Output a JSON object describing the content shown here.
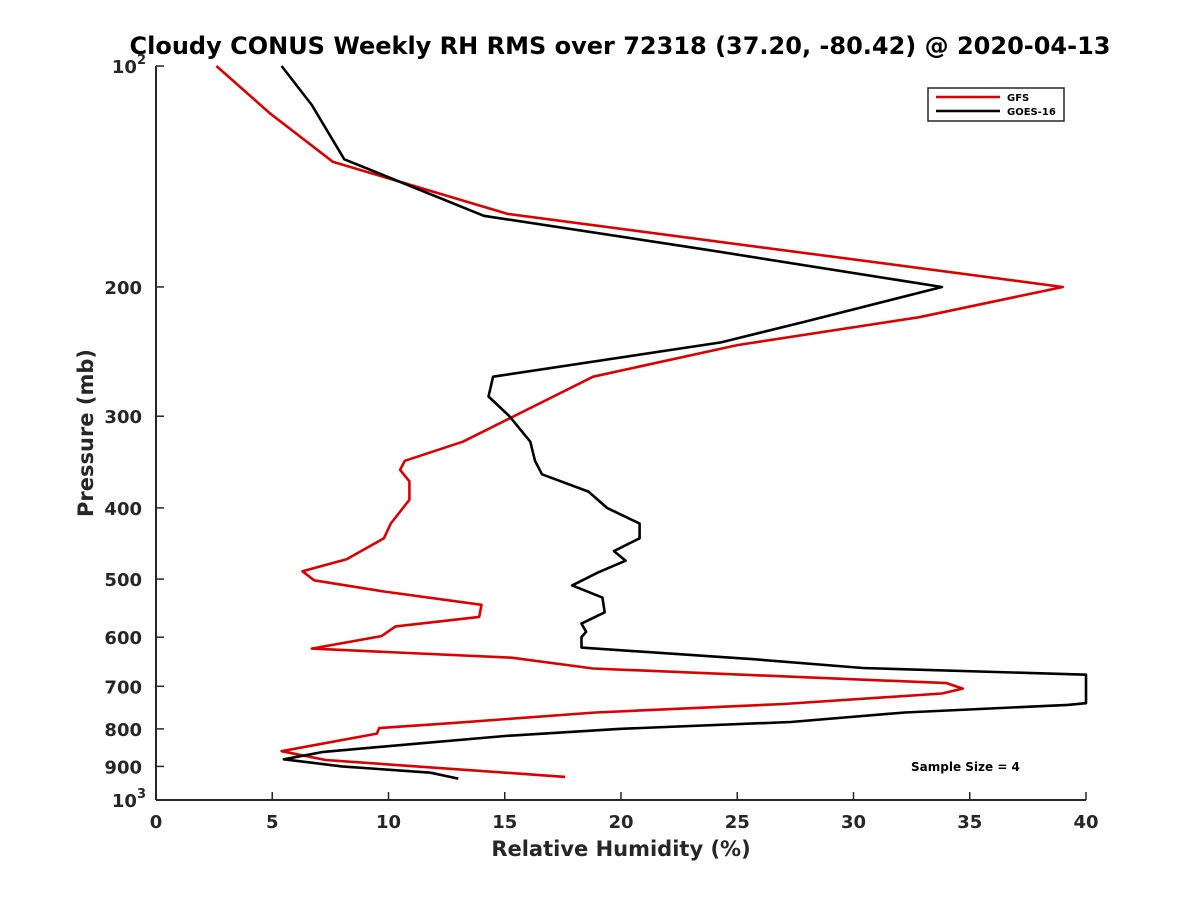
{
  "chart_data": {
    "type": "line",
    "title": "Cloudy CONUS Weekly RH RMS over 72318 (37.20, -80.42) @ 2020-04-13",
    "xlabel": "Relative Humidity (%)",
    "ylabel": "Pressure (mb)",
    "xlim": [
      0,
      40
    ],
    "ylim": [
      100,
      1000
    ],
    "yscale": "log",
    "y_reversed": true,
    "grid": false,
    "legend_position": "top-right",
    "x_ticks": [
      "0",
      "5",
      "10",
      "15",
      "20",
      "25",
      "30",
      "35",
      "40"
    ],
    "y_ticks": [
      {
        "value": 100,
        "base": "10",
        "exp": "2"
      },
      {
        "value": 200,
        "label": "200"
      },
      {
        "value": 300,
        "label": "300"
      },
      {
        "value": 400,
        "label": "400"
      },
      {
        "value": 500,
        "label": "500"
      },
      {
        "value": 600,
        "label": "600"
      },
      {
        "value": 700,
        "label": "700"
      },
      {
        "value": 800,
        "label": "800"
      },
      {
        "value": 900,
        "label": "900"
      },
      {
        "value": 1000,
        "base": "10",
        "exp": "3"
      }
    ],
    "annotation": "Sample Size = 4",
    "series": [
      {
        "name": "GFS",
        "color": "#dd0000",
        "points": [
          [
            2.6,
            100
          ],
          [
            4.9,
            116
          ],
          [
            7.6,
            135
          ],
          [
            15.1,
            159
          ],
          [
            39.0,
            200
          ],
          [
            32.8,
            220
          ],
          [
            25.0,
            240
          ],
          [
            18.8,
            265
          ],
          [
            13.2,
            325
          ],
          [
            10.7,
            345
          ],
          [
            10.5,
            355
          ],
          [
            10.9,
            368
          ],
          [
            10.9,
            390
          ],
          [
            10.1,
            420
          ],
          [
            9.8,
            440
          ],
          [
            8.2,
            470
          ],
          [
            6.3,
            488
          ],
          [
            6.8,
            502
          ],
          [
            9.8,
            520
          ],
          [
            14.0,
            542
          ],
          [
            13.9,
            563
          ],
          [
            10.3,
            580
          ],
          [
            9.7,
            598
          ],
          [
            6.7,
            622
          ],
          [
            15.3,
            640
          ],
          [
            18.8,
            662
          ],
          [
            34.0,
            693
          ],
          [
            34.7,
            705
          ],
          [
            33.8,
            716
          ],
          [
            27.0,
            740
          ],
          [
            18.9,
            760
          ],
          [
            12.9,
            785
          ],
          [
            9.6,
            798
          ],
          [
            9.5,
            812
          ],
          [
            6.8,
            842
          ],
          [
            5.4,
            858
          ],
          [
            7.3,
            882
          ],
          [
            17.6,
            930
          ]
        ]
      },
      {
        "name": "GOES-16",
        "color": "#000000",
        "points": [
          [
            5.4,
            100
          ],
          [
            6.7,
            113
          ],
          [
            8.1,
            134
          ],
          [
            14.1,
            160
          ],
          [
            23.7,
            178
          ],
          [
            33.8,
            200
          ],
          [
            27.9,
            223
          ],
          [
            24.3,
            238
          ],
          [
            14.5,
            265
          ],
          [
            14.3,
            282
          ],
          [
            15.2,
            300
          ],
          [
            16.1,
            325
          ],
          [
            16.3,
            345
          ],
          [
            16.6,
            360
          ],
          [
            18.6,
            380
          ],
          [
            19.4,
            400
          ],
          [
            20.8,
            420
          ],
          [
            20.8,
            440
          ],
          [
            19.7,
            458
          ],
          [
            20.2,
            472
          ],
          [
            19.0,
            490
          ],
          [
            17.9,
            510
          ],
          [
            19.2,
            530
          ],
          [
            19.3,
            555
          ],
          [
            18.3,
            575
          ],
          [
            18.5,
            590
          ],
          [
            18.3,
            600
          ],
          [
            18.3,
            620
          ],
          [
            25.7,
            643
          ],
          [
            30.4,
            661
          ],
          [
            40.0,
            675
          ],
          [
            40.0,
            738
          ],
          [
            39.2,
            742
          ],
          [
            32.2,
            760
          ],
          [
            27.3,
            783
          ],
          [
            19.9,
            800
          ],
          [
            15.0,
            818
          ],
          [
            11.2,
            838
          ],
          [
            7.2,
            860
          ],
          [
            5.5,
            880
          ],
          [
            8.0,
            900
          ],
          [
            11.8,
            918
          ],
          [
            13.0,
            935
          ]
        ]
      }
    ]
  }
}
